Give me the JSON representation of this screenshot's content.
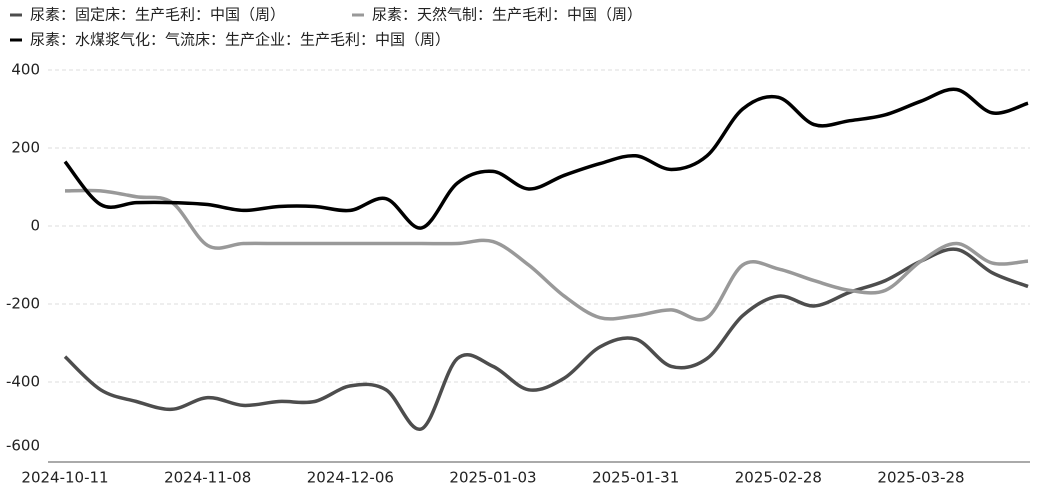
{
  "chart_data": {
    "type": "line",
    "categories": [
      "2024-10-11",
      null,
      null,
      null,
      "2024-11-08",
      null,
      null,
      null,
      "2024-12-06",
      null,
      null,
      null,
      "2025-01-03",
      null,
      null,
      null,
      "2025-01-31",
      null,
      null,
      null,
      "2025-02-28",
      null,
      null,
      null,
      "2025-03-28",
      null,
      null,
      null
    ],
    "series": [
      {
        "name": "尿素：固定床：生产毛利：中国（周）",
        "color": "#4d4d4d",
        "values": [
          -335,
          -420,
          -450,
          -470,
          -440,
          -460,
          -450,
          -450,
          -410,
          -420,
          -520,
          -340,
          -360,
          -420,
          -390,
          -310,
          -290,
          -360,
          -340,
          -230,
          -180,
          -205,
          -170,
          -140,
          -90,
          -60,
          -120,
          -155
        ]
      },
      {
        "name": "尿素：天然气制：生产毛利：中国（周）",
        "color": "#999999",
        "values": [
          90,
          90,
          75,
          60,
          -50,
          -45,
          -45,
          -45,
          -45,
          -45,
          -45,
          -45,
          -40,
          -100,
          -180,
          -235,
          -230,
          -215,
          -235,
          -100,
          -110,
          -140,
          -165,
          -165,
          -90,
          -45,
          -95,
          -90
        ]
      },
      {
        "name": "尿素：水煤浆气化：气流床：生产企业：生产毛利：中国（周）",
        "color": "#000000",
        "values": [
          165,
          55,
          60,
          60,
          55,
          40,
          50,
          50,
          40,
          70,
          -5,
          110,
          140,
          95,
          130,
          160,
          180,
          145,
          180,
          300,
          330,
          260,
          270,
          285,
          320,
          350,
          290,
          315
        ]
      }
    ],
    "ylim": [
      -600,
      400
    ],
    "yticks": [
      -600,
      -400,
      -200,
      0,
      200,
      400
    ],
    "grid": true
  }
}
